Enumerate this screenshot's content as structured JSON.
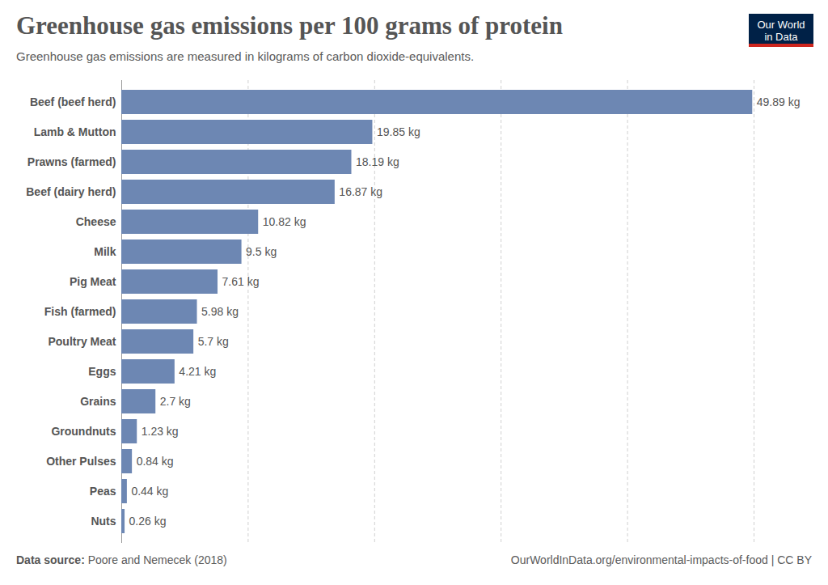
{
  "chart_data": {
    "type": "bar",
    "orientation": "horizontal",
    "title": "Greenhouse gas emissions per 100 grams of protein",
    "subtitle": "Greenhouse gas emissions are measured in kilograms of carbon dioxide-equivalents.",
    "logo": "Our World in Data",
    "source_label": "Data source:",
    "source": "Poore and Nemecek (2018)",
    "url": "OurWorldInData.org/environmental-impacts-of-food | CC BY",
    "categories": [
      "Beef (beef herd)",
      "Lamb & Mutton",
      "Prawns (farmed)",
      "Beef (dairy herd)",
      "Cheese",
      "Milk",
      "Pig Meat",
      "Fish (farmed)",
      "Poultry Meat",
      "Eggs",
      "Grains",
      "Groundnuts",
      "Other Pulses",
      "Peas",
      "Nuts"
    ],
    "values": [
      49.89,
      19.85,
      18.19,
      16.87,
      10.82,
      9.5,
      7.61,
      5.98,
      5.7,
      4.21,
      2.7,
      1.23,
      0.84,
      0.44,
      0.26
    ],
    "value_labels": [
      "49.89 kg",
      "19.85 kg",
      "18.19 kg",
      "16.87 kg",
      "10.82 kg",
      "9.5 kg",
      "7.61 kg",
      "5.98 kg",
      "5.7 kg",
      "4.21 kg",
      "2.7 kg",
      "1.23 kg",
      "0.84 kg",
      "0.44 kg",
      "0.26 kg"
    ],
    "color": "#6d87b3",
    "xlim": [
      0,
      50
    ],
    "xticks": [
      0,
      10,
      20,
      30,
      40,
      50
    ],
    "grid": true,
    "data_labels": true,
    "tick_labels": "y"
  }
}
